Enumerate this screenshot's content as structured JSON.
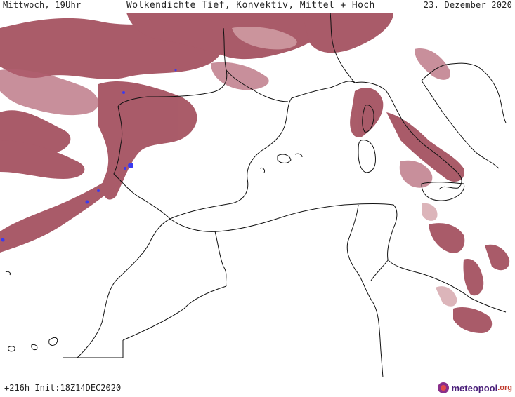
{
  "header": {
    "weekday_time": "Mittwoch, 19Uhr",
    "title": "Wolkendichte  Tief, Konvektiv, Mittel + Hoch",
    "valid_date": "23. Dezember 2020"
  },
  "footer": {
    "run_info": "+216h Init:18Z14DEC2020",
    "logo_main": "meteopool",
    "logo_tld": ".org"
  },
  "colors": {
    "cloud_dark": "#9b3f4f",
    "cloud_medium": "#b06070",
    "cloud_light": "#d3a2a9",
    "convective": "#3a3af0",
    "coastline": "#111111",
    "background": "#ffffff"
  },
  "icons": {
    "logo": "meteopool-logo-icon"
  }
}
